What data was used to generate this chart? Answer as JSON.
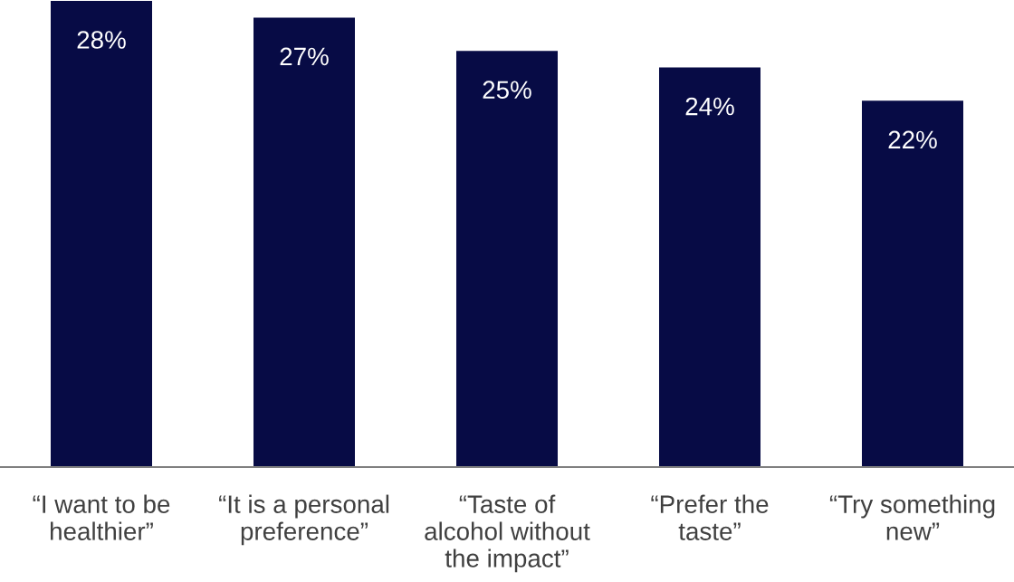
{
  "chart_data": {
    "type": "bar",
    "categories": [
      "“I want to be\nhealthier”",
      "“It is a personal\npreference”",
      "“Taste of\nalcohol without\nthe impact”",
      "“Prefer the\ntaste”",
      "“Try something\nnew”"
    ],
    "values": [
      28,
      27,
      25,
      24,
      22
    ],
    "value_labels": [
      "28%",
      "27%",
      "25%",
      "24%",
      "22%"
    ],
    "color": "#070b45"
  }
}
